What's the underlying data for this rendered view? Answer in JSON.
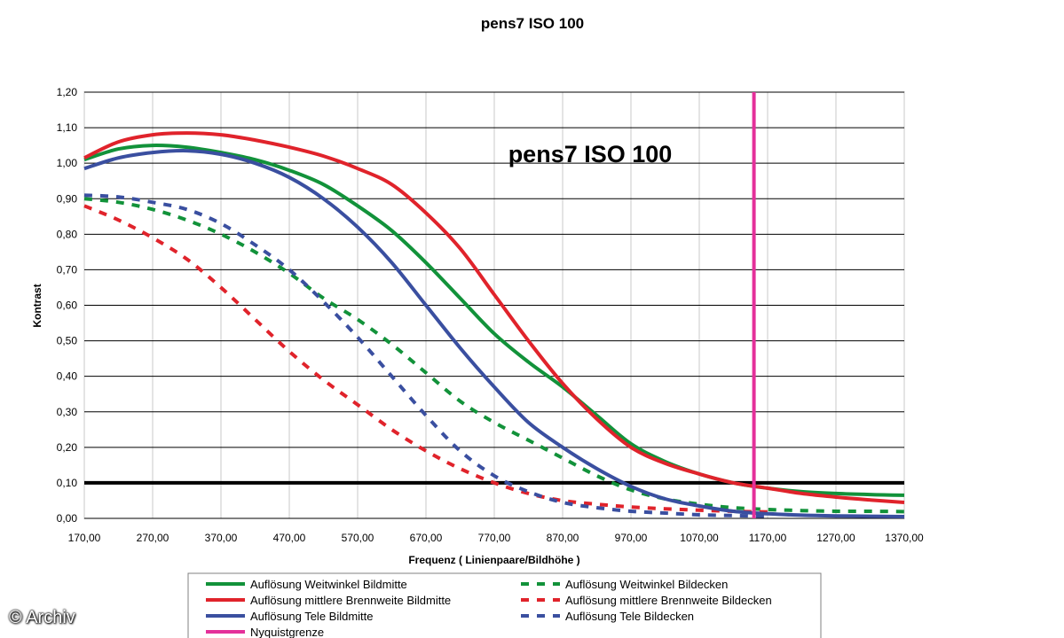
{
  "chart_data": {
    "type": "line",
    "title": "pens7 ISO 100",
    "annotation": "pens7 ISO 100",
    "xlabel": "Frequenz ( Linienpaare/Bildhöhe )",
    "ylabel": "Kontrast",
    "xlim": [
      170,
      1370
    ],
    "ylim": [
      0,
      1.2
    ],
    "xticks": [
      "170,00",
      "270,00",
      "370,00",
      "470,00",
      "570,00",
      "670,00",
      "770,00",
      "870,00",
      "970,00",
      "1070,00",
      "1170,00",
      "1270,00",
      "1370,00"
    ],
    "yticks": [
      "0,00",
      "0,10",
      "0,20",
      "0,30",
      "0,40",
      "0,50",
      "0,60",
      "0,70",
      "0,80",
      "0,90",
      "1,00",
      "1,10",
      "1,20"
    ],
    "grid": "horizontal",
    "legend_position": "bottom",
    "reference_line_y": 0.1,
    "nyquist_x": 1150,
    "colors": {
      "green": "#12923a",
      "red": "#e0232b",
      "blue": "#3a4fa0",
      "magenta": "#e4309a",
      "black": "#000000"
    },
    "series": [
      {
        "name": "Auflösung Weitwinkel Bildmitte",
        "color": "#12923a",
        "dash": "solid",
        "x": [
          170,
          220,
          270,
          320,
          370,
          420,
          470,
          520,
          570,
          620,
          670,
          720,
          770,
          820,
          870,
          920,
          970,
          1020,
          1070,
          1120,
          1170,
          1220,
          1270,
          1320,
          1370
        ],
        "y": [
          1.01,
          1.04,
          1.05,
          1.045,
          1.03,
          1.01,
          0.98,
          0.94,
          0.88,
          0.81,
          0.72,
          0.62,
          0.52,
          0.44,
          0.37,
          0.29,
          0.21,
          0.16,
          0.125,
          0.1,
          0.085,
          0.075,
          0.07,
          0.067,
          0.065
        ]
      },
      {
        "name": "Auflösung mittlere Brennweite Bildmitte",
        "color": "#e0232b",
        "dash": "solid",
        "x": [
          170,
          220,
          270,
          320,
          370,
          420,
          470,
          520,
          570,
          620,
          670,
          720,
          770,
          820,
          870,
          920,
          970,
          1020,
          1070,
          1120,
          1170,
          1220,
          1270,
          1320,
          1370
        ],
        "y": [
          1.015,
          1.06,
          1.08,
          1.085,
          1.08,
          1.065,
          1.045,
          1.02,
          0.985,
          0.94,
          0.86,
          0.76,
          0.63,
          0.5,
          0.38,
          0.28,
          0.2,
          0.155,
          0.125,
          0.1,
          0.085,
          0.07,
          0.06,
          0.052,
          0.045
        ]
      },
      {
        "name": "Auflösung Tele Bildmitte",
        "color": "#3a4fa0",
        "dash": "solid",
        "x": [
          170,
          220,
          270,
          320,
          370,
          420,
          470,
          520,
          570,
          620,
          670,
          720,
          770,
          820,
          870,
          920,
          970,
          1020,
          1070,
          1120,
          1170,
          1220,
          1270,
          1320,
          1370
        ],
        "y": [
          0.985,
          1.015,
          1.03,
          1.035,
          1.025,
          1.0,
          0.96,
          0.9,
          0.82,
          0.72,
          0.6,
          0.48,
          0.37,
          0.27,
          0.2,
          0.14,
          0.09,
          0.055,
          0.035,
          0.02,
          0.013,
          0.009,
          0.007,
          0.006,
          0.005
        ]
      },
      {
        "name": "Auflösung Weitwinkel Bildecken",
        "color": "#12923a",
        "dash": "dashed",
        "x": [
          170,
          220,
          270,
          320,
          370,
          420,
          470,
          520,
          570,
          620,
          670,
          720,
          770,
          820,
          870,
          920,
          970,
          1020,
          1070,
          1120,
          1170,
          1220,
          1270,
          1320,
          1370
        ],
        "y": [
          0.9,
          0.89,
          0.87,
          0.84,
          0.8,
          0.75,
          0.69,
          0.62,
          0.56,
          0.49,
          0.41,
          0.33,
          0.27,
          0.22,
          0.17,
          0.12,
          0.08,
          0.055,
          0.04,
          0.03,
          0.025,
          0.022,
          0.02,
          0.02,
          0.019
        ]
      },
      {
        "name": "Auflösung mittlere Brennweite Bildecken",
        "color": "#e0232b",
        "dash": "dashed",
        "x": [
          170,
          220,
          270,
          320,
          370,
          420,
          470,
          520,
          570,
          620,
          670,
          720,
          770,
          820,
          870,
          920,
          970,
          1020,
          1070,
          1120,
          1170
        ],
        "y": [
          0.88,
          0.84,
          0.79,
          0.73,
          0.65,
          0.56,
          0.47,
          0.39,
          0.32,
          0.25,
          0.19,
          0.14,
          0.1,
          0.07,
          0.05,
          0.04,
          0.032,
          0.027,
          0.023,
          0.02,
          0.018
        ]
      },
      {
        "name": "Auflösung Tele Bildecken",
        "color": "#3a4fa0",
        "dash": "dashed",
        "x": [
          170,
          220,
          270,
          320,
          370,
          420,
          470,
          520,
          570,
          620,
          670,
          720,
          770,
          820,
          870,
          920,
          970,
          1020,
          1070,
          1120,
          1170
        ],
        "y": [
          0.91,
          0.905,
          0.89,
          0.87,
          0.83,
          0.77,
          0.7,
          0.61,
          0.51,
          0.4,
          0.29,
          0.19,
          0.12,
          0.075,
          0.045,
          0.03,
          0.02,
          0.015,
          0.01,
          0.008,
          0.006
        ]
      },
      {
        "name": "Nyquistgrenze",
        "color": "#e4309a",
        "dash": "solid",
        "x": [
          1150,
          1150
        ],
        "y": [
          0,
          1.2
        ]
      }
    ]
  },
  "watermark": "© Archiv"
}
